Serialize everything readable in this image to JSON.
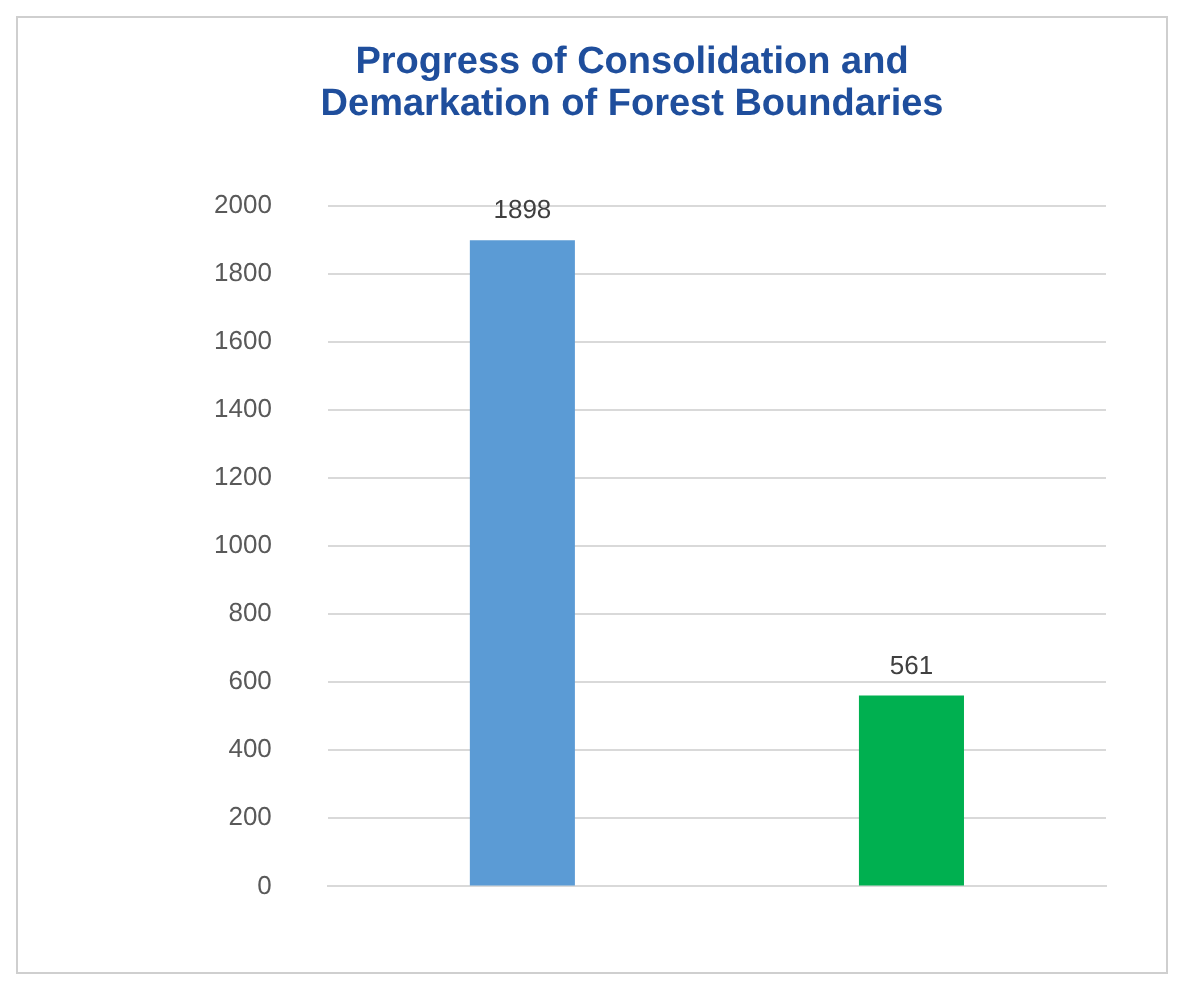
{
  "chart_data": {
    "type": "bar",
    "title": "Progress of Consolidation and\nDemarkation of Forest Boundaries",
    "categories": [
      null,
      null
    ],
    "values": [
      1898,
      561
    ],
    "colors": [
      "#5b9bd5",
      "#00b050"
    ],
    "ylim": [
      0,
      2000
    ],
    "yticks": [
      0,
      200,
      400,
      600,
      800,
      1000,
      1200,
      1400,
      1600,
      1800,
      2000
    ],
    "grid": "y",
    "data_labels": true
  }
}
